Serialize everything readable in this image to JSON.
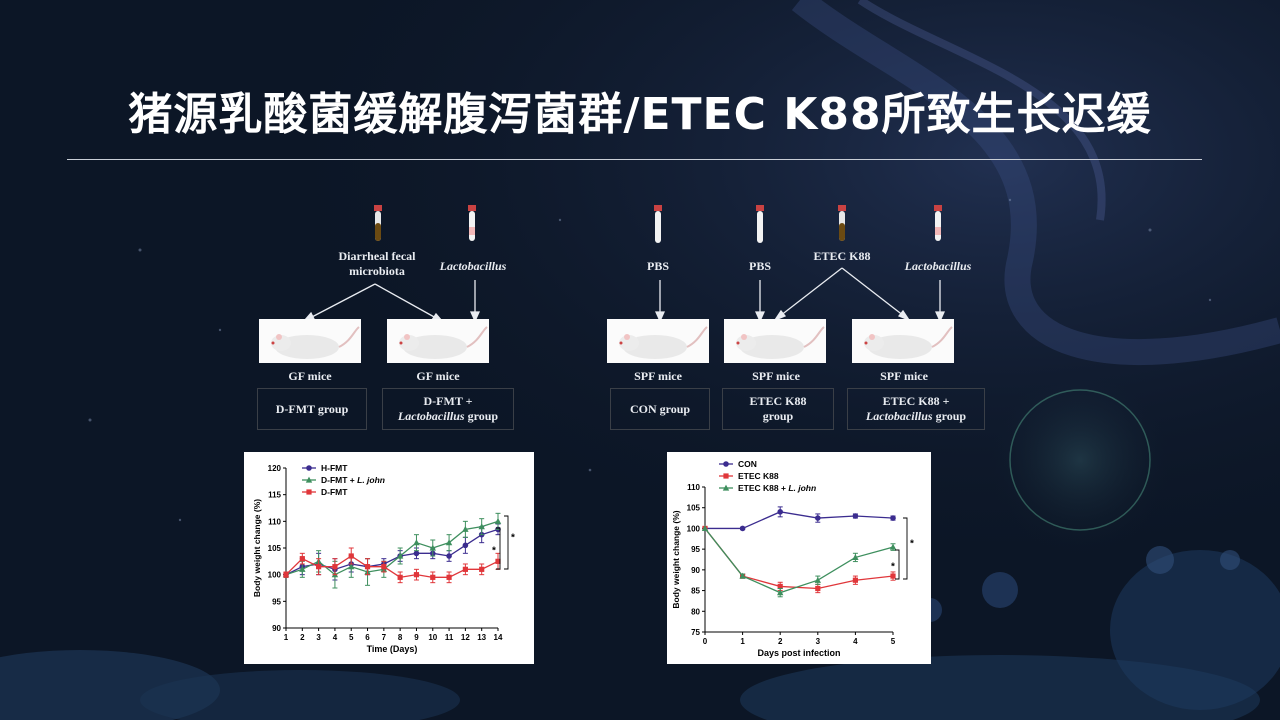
{
  "slide": {
    "title": "猪源乳酸菌缓解腹泻菌群/ETEC K88所致生长迟缓"
  },
  "left_schematic": {
    "sources": [
      {
        "label_line1": "Diarrheal  fecal",
        "label_line2": "microbiota",
        "tube": "brown"
      },
      {
        "label_italic": "Lactobacillus",
        "tube": "pink"
      }
    ],
    "mice": [
      {
        "label": "GF mice",
        "group_line1": "D-FMT group",
        "group_line2": ""
      },
      {
        "label": "GF mice",
        "group_line1": "D-FMT +",
        "group_line2_italic": "Lactobacillus",
        "group_line2_tail": " group"
      }
    ]
  },
  "right_schematic": {
    "sources": [
      {
        "label": "PBS",
        "tube": "clear"
      },
      {
        "label": "PBS",
        "tube": "clear"
      },
      {
        "label": "ETEC  K88",
        "tube": "brown"
      },
      {
        "label_italic": "Lactobacillus",
        "tube": "pink"
      }
    ],
    "mice": [
      {
        "label": "SPF mice",
        "group_line1": "CON group",
        "group_line2": ""
      },
      {
        "label": "SPF mice",
        "group_line1": "ETEC  K88",
        "group_line2": "group"
      },
      {
        "label": "SPF mice",
        "group_line1": "ETEC  K88 +",
        "group_line2_italic": "Lactobacillus",
        "group_line2_tail": " group"
      }
    ]
  },
  "chart_data": [
    {
      "type": "line",
      "xlabel": "Time (Days)",
      "ylabel": "Body weight change (%)",
      "xlim": [
        1,
        14
      ],
      "ylim": [
        90,
        120
      ],
      "x_ticks": [
        1,
        2,
        3,
        4,
        5,
        6,
        7,
        8,
        9,
        10,
        11,
        12,
        13,
        14
      ],
      "y_ticks": [
        90,
        95,
        100,
        105,
        110,
        115,
        120
      ],
      "legend_position": "top-left",
      "significance": [
        "*",
        "*"
      ],
      "x": [
        1,
        2,
        3,
        4,
        5,
        6,
        7,
        8,
        9,
        10,
        11,
        12,
        13,
        14
      ],
      "series": [
        {
          "name": "H-FMT",
          "marker": "circle",
          "color": "#3b2c8f",
          "values": [
            100,
            101.5,
            102,
            101,
            102,
            101.5,
            102,
            103.5,
            104,
            104,
            103.5,
            105.5,
            107.5,
            108.5
          ],
          "errors": [
            0.5,
            1.5,
            2,
            2,
            1.5,
            1.5,
            1,
            1,
            1,
            1,
            1,
            1.5,
            1.5,
            1
          ]
        },
        {
          "name": "D-FMT + ",
          "name_italic": "L. john",
          "marker": "triangle",
          "color": "#3e8f5e",
          "values": [
            100,
            101,
            102.5,
            100,
            101.5,
            100.5,
            101,
            103.5,
            106,
            105,
            106,
            108.5,
            109,
            110
          ],
          "errors": [
            0.5,
            1.5,
            2,
            2.5,
            2,
            2.5,
            1.5,
            1.5,
            1.5,
            1.5,
            1.5,
            1.5,
            1.5,
            1.5
          ]
        },
        {
          "name": "D-FMT",
          "marker": "square",
          "color": "#e0363a",
          "values": [
            100,
            103,
            101.5,
            101.5,
            103.5,
            101.5,
            101.5,
            99.5,
            100,
            99.5,
            99.5,
            101,
            101,
            102.5
          ],
          "errors": [
            0.5,
            1,
            1.5,
            1.5,
            1.5,
            1.5,
            1,
            1,
            1,
            1,
            1,
            1,
            1,
            1.5
          ]
        }
      ]
    },
    {
      "type": "line",
      "xlabel": "Days post infection",
      "ylabel": "Body weight change (%)",
      "xlim": [
        0,
        5
      ],
      "ylim": [
        75,
        110
      ],
      "x_ticks": [
        0,
        1,
        2,
        3,
        4,
        5
      ],
      "y_ticks": [
        75,
        80,
        85,
        90,
        95,
        100,
        105,
        110
      ],
      "legend_position": "top-left",
      "significance": [
        "*",
        "*"
      ],
      "x": [
        0,
        1,
        2,
        3,
        4,
        5
      ],
      "series": [
        {
          "name": "CON",
          "marker": "circle",
          "color": "#3b2c8f",
          "values": [
            100,
            100,
            104,
            102.5,
            103,
            102.5
          ],
          "errors": [
            0,
            0.3,
            1.2,
            1,
            0.5,
            0.5
          ]
        },
        {
          "name": "ETEC K88",
          "marker": "square",
          "color": "#e0363a",
          "values": [
            100,
            88.5,
            86,
            85.5,
            87.5,
            88.5
          ],
          "errors": [
            0,
            0.5,
            1,
            1,
            1,
            1
          ]
        },
        {
          "name": "ETEC K88 + ",
          "name_italic": "L. john",
          "marker": "triangle",
          "color": "#3e8f5e",
          "values": [
            100,
            88.5,
            84.5,
            87.5,
            93,
            95.5
          ],
          "errors": [
            0,
            0.5,
            1,
            1,
            1,
            0.8
          ]
        }
      ]
    }
  ]
}
